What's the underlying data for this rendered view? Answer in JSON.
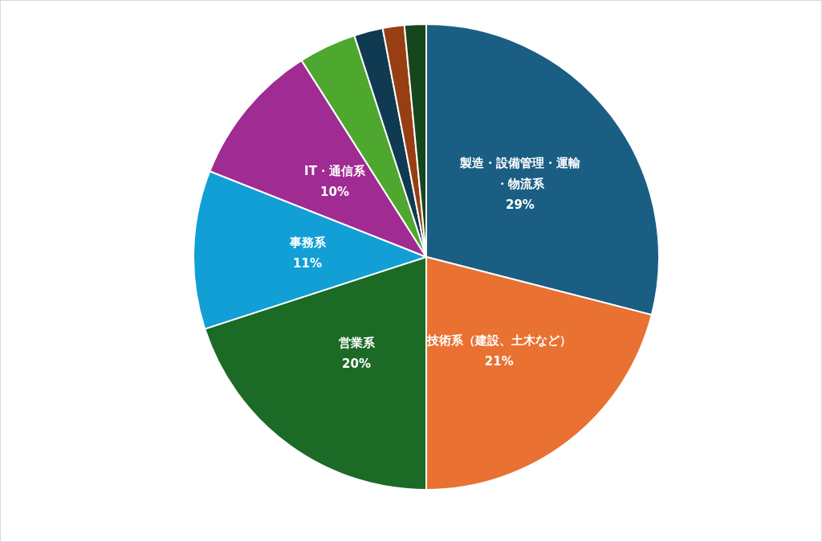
{
  "chart_data": {
    "type": "pie",
    "categories": [
      "製造・設備管理・運輸・物流系",
      "技術系（建設、土木など）",
      "営業系",
      "事務系",
      "IT・通信系",
      null,
      null,
      null,
      null
    ],
    "values": [
      29,
      21,
      20,
      11,
      10,
      4,
      2,
      1.5,
      1.5
    ],
    "value_labels": [
      "29%",
      "21%",
      "20%",
      "11%",
      "10%",
      null,
      null,
      null,
      null
    ],
    "colors": [
      "#1a5e84",
      "#e97132",
      "#1b6b26",
      "#119fd6",
      "#a02b93",
      "#4ea72e",
      "#0f3a52",
      "#973f13",
      "#18461c"
    ],
    "legend": false
  }
}
